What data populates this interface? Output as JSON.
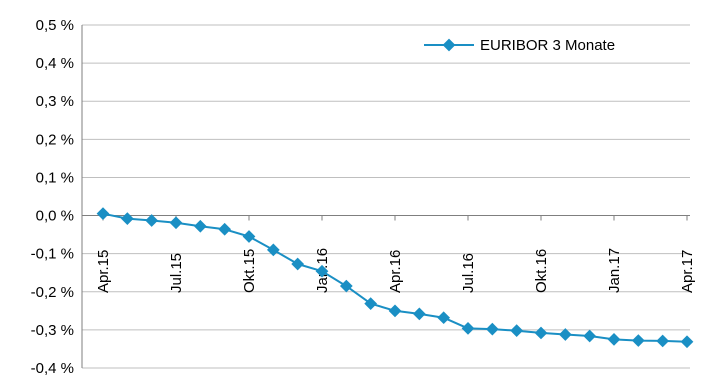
{
  "chart_data": {
    "type": "line",
    "title": "",
    "xlabel": "",
    "ylabel": "",
    "ylim": [
      -0.4,
      0.5
    ],
    "y_ticks": [
      0.5,
      0.4,
      0.3,
      0.2,
      0.1,
      0.0,
      -0.1,
      -0.2,
      -0.3,
      -0.4
    ],
    "y_tick_labels": [
      "0,5 %",
      "0,4 %",
      "0,3 %",
      "0,2 %",
      "0,1 %",
      "0,0 %",
      "-0,1 %",
      "-0,2 %",
      "-0,3 %",
      "-0,4 %"
    ],
    "x_tick_labels": [
      "Apr.15",
      "Jul.15",
      "Okt.15",
      "Jan.16",
      "Apr.16",
      "Jul.16",
      "Okt.16",
      "Jan.17",
      "Apr.17"
    ],
    "x_tick_months": [
      0,
      3,
      6,
      9,
      12,
      15,
      18,
      21,
      24
    ],
    "grid": "horizontal",
    "legend_position": "top-right",
    "series": [
      {
        "name": "EURIBOR 3 Monate",
        "color": "#1a8fc4",
        "marker": "diamond",
        "months": [
          0,
          1,
          2,
          3,
          4,
          5,
          6,
          7,
          8,
          9,
          10,
          11,
          12,
          13,
          14,
          15,
          16,
          17,
          18,
          19,
          20,
          21,
          22,
          23,
          24
        ],
        "values": [
          0.005,
          -0.008,
          -0.013,
          -0.019,
          -0.028,
          -0.036,
          -0.055,
          -0.09,
          -0.127,
          -0.146,
          -0.185,
          -0.231,
          -0.25,
          -0.258,
          -0.268,
          -0.296,
          -0.298,
          -0.302,
          -0.308,
          -0.312,
          -0.316,
          -0.325,
          -0.328,
          -0.329,
          -0.331
        ]
      }
    ]
  }
}
